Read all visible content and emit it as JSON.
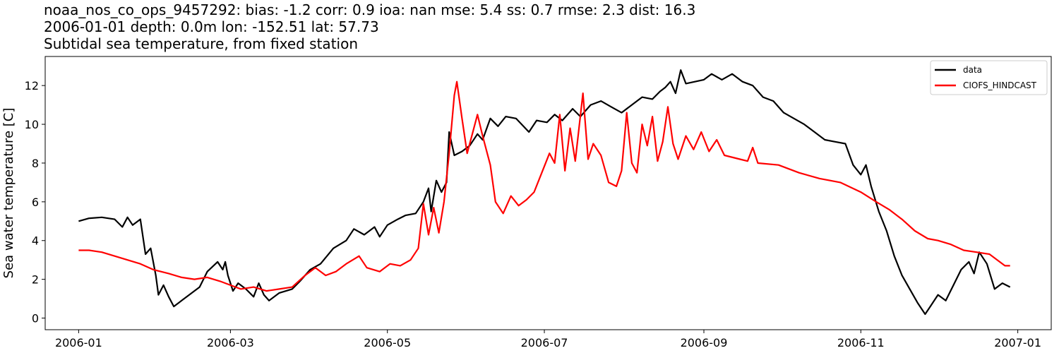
{
  "chart_data": {
    "type": "line",
    "title_lines": [
      "noaa_nos_co_ops_9457292: bias: -1.2  corr: 0.9  ioa: nan  mse: 5.4  ss: 0.7  rmse: 2.3  dist: 16.3",
      "2006-01-01 depth: 0.0m lon: -152.51 lat: 57.73",
      "Subtidal sea temperature, from fixed station"
    ],
    "xlabel": "",
    "ylabel": "Sea water temperature [C]",
    "xlim": [
      "2005-12-19",
      "2007-01-14"
    ],
    "ylim": [
      -0.6,
      13.5
    ],
    "x_ticks": [
      "2006-01",
      "2006-03",
      "2006-05",
      "2006-07",
      "2006-09",
      "2006-11",
      "2007-01"
    ],
    "y_ticks": [
      0,
      2,
      4,
      6,
      8,
      10,
      12
    ],
    "grid": false,
    "legend_position": "top-right",
    "series": [
      {
        "name": "data",
        "color": "#000000",
        "points": [
          [
            "2006-01-01",
            5.0
          ],
          [
            "2006-01-05",
            5.15
          ],
          [
            "2006-01-10",
            5.2
          ],
          [
            "2006-01-15",
            5.1
          ],
          [
            "2006-01-18",
            4.7
          ],
          [
            "2006-01-20",
            5.2
          ],
          [
            "2006-01-22",
            4.8
          ],
          [
            "2006-01-25",
            5.1
          ],
          [
            "2006-01-27",
            3.3
          ],
          [
            "2006-01-29",
            3.6
          ],
          [
            "2006-01-31",
            2.2
          ],
          [
            "2006-02-01",
            1.2
          ],
          [
            "2006-02-03",
            1.7
          ],
          [
            "2006-02-05",
            1.1
          ],
          [
            "2006-02-07",
            0.6
          ],
          [
            "2006-02-10",
            0.9
          ],
          [
            "2006-02-14",
            1.3
          ],
          [
            "2006-02-17",
            1.6
          ],
          [
            "2006-02-20",
            2.4
          ],
          [
            "2006-02-24",
            2.9
          ],
          [
            "2006-02-26",
            2.5
          ],
          [
            "2006-02-27",
            2.9
          ],
          [
            "2006-02-28",
            2.2
          ],
          [
            "2006-03-02",
            1.4
          ],
          [
            "2006-03-04",
            1.8
          ],
          [
            "2006-03-07",
            1.5
          ],
          [
            "2006-03-10",
            1.1
          ],
          [
            "2006-03-12",
            1.8
          ],
          [
            "2006-03-14",
            1.2
          ],
          [
            "2006-03-16",
            0.9
          ],
          [
            "2006-03-20",
            1.3
          ],
          [
            "2006-03-25",
            1.5
          ],
          [
            "2006-03-28",
            1.9
          ],
          [
            "2006-04-01",
            2.5
          ],
          [
            "2006-04-05",
            2.8
          ],
          [
            "2006-04-10",
            3.6
          ],
          [
            "2006-04-15",
            4.0
          ],
          [
            "2006-04-18",
            4.6
          ],
          [
            "2006-04-22",
            4.3
          ],
          [
            "2006-04-26",
            4.7
          ],
          [
            "2006-04-28",
            4.2
          ],
          [
            "2006-05-01",
            4.8
          ],
          [
            "2006-05-05",
            5.1
          ],
          [
            "2006-05-08",
            5.3
          ],
          [
            "2006-05-12",
            5.4
          ],
          [
            "2006-05-15",
            6.0
          ],
          [
            "2006-05-17",
            6.7
          ],
          [
            "2006-05-18",
            5.5
          ],
          [
            "2006-05-20",
            7.1
          ],
          [
            "2006-05-22",
            6.5
          ],
          [
            "2006-05-24",
            7.0
          ],
          [
            "2006-05-25",
            9.6
          ],
          [
            "2006-05-27",
            8.4
          ],
          [
            "2006-05-30",
            8.6
          ],
          [
            "2006-06-02",
            8.9
          ],
          [
            "2006-06-05",
            9.5
          ],
          [
            "2006-06-07",
            9.2
          ],
          [
            "2006-06-10",
            10.3
          ],
          [
            "2006-06-13",
            9.9
          ],
          [
            "2006-06-16",
            10.4
          ],
          [
            "2006-06-20",
            10.3
          ],
          [
            "2006-06-25",
            9.6
          ],
          [
            "2006-06-28",
            10.2
          ],
          [
            "2006-07-02",
            10.1
          ],
          [
            "2006-07-05",
            10.5
          ],
          [
            "2006-07-08",
            10.2
          ],
          [
            "2006-07-12",
            10.8
          ],
          [
            "2006-07-15",
            10.4
          ],
          [
            "2006-07-19",
            11.0
          ],
          [
            "2006-07-23",
            11.2
          ],
          [
            "2006-07-27",
            10.9
          ],
          [
            "2006-07-31",
            10.6
          ],
          [
            "2006-08-04",
            11.0
          ],
          [
            "2006-08-08",
            11.4
          ],
          [
            "2006-08-12",
            11.3
          ],
          [
            "2006-08-15",
            11.7
          ],
          [
            "2006-08-17",
            11.9
          ],
          [
            "2006-08-19",
            12.2
          ],
          [
            "2006-08-21",
            11.6
          ],
          [
            "2006-08-23",
            12.8
          ],
          [
            "2006-08-25",
            12.1
          ],
          [
            "2006-09-01",
            12.3
          ],
          [
            "2006-09-04",
            12.6
          ],
          [
            "2006-09-08",
            12.3
          ],
          [
            "2006-09-12",
            12.6
          ],
          [
            "2006-09-16",
            12.2
          ],
          [
            "2006-09-20",
            12.0
          ],
          [
            "2006-09-24",
            11.4
          ],
          [
            "2006-09-28",
            11.2
          ],
          [
            "2006-10-02",
            10.6
          ],
          [
            "2006-10-06",
            10.3
          ],
          [
            "2006-10-10",
            10.0
          ],
          [
            "2006-10-14",
            9.6
          ],
          [
            "2006-10-18",
            9.2
          ],
          [
            "2006-10-22",
            9.1
          ],
          [
            "2006-10-26",
            9.0
          ],
          [
            "2006-10-29",
            7.9
          ],
          [
            "2006-11-01",
            7.4
          ],
          [
            "2006-11-03",
            7.9
          ],
          [
            "2006-11-05",
            6.8
          ],
          [
            "2006-11-08",
            5.5
          ],
          [
            "2006-11-11",
            4.5
          ],
          [
            "2006-11-14",
            3.2
          ],
          [
            "2006-11-17",
            2.2
          ],
          [
            "2006-11-20",
            1.5
          ],
          [
            "2006-11-23",
            0.8
          ],
          [
            "2006-11-26",
            0.2
          ],
          [
            "2006-11-28",
            0.6
          ],
          [
            "2006-12-01",
            1.2
          ],
          [
            "2006-12-04",
            0.9
          ],
          [
            "2006-12-07",
            1.7
          ],
          [
            "2006-12-10",
            2.5
          ],
          [
            "2006-12-13",
            2.9
          ],
          [
            "2006-12-15",
            2.3
          ],
          [
            "2006-12-17",
            3.4
          ],
          [
            "2006-12-20",
            2.8
          ],
          [
            "2006-12-23",
            1.5
          ],
          [
            "2006-12-26",
            1.8
          ],
          [
            "2006-12-29",
            1.6
          ]
        ]
      },
      {
        "name": "CIOFS_HINDCAST",
        "color": "#ff0000",
        "points": [
          [
            "2006-01-01",
            3.5
          ],
          [
            "2006-01-05",
            3.5
          ],
          [
            "2006-01-10",
            3.4
          ],
          [
            "2006-01-15",
            3.2
          ],
          [
            "2006-01-20",
            3.0
          ],
          [
            "2006-01-25",
            2.8
          ],
          [
            "2006-01-30",
            2.5
          ],
          [
            "2006-02-05",
            2.3
          ],
          [
            "2006-02-10",
            2.1
          ],
          [
            "2006-02-15",
            2.0
          ],
          [
            "2006-02-20",
            2.1
          ],
          [
            "2006-02-25",
            1.9
          ],
          [
            "2006-03-01",
            1.7
          ],
          [
            "2006-03-05",
            1.5
          ],
          [
            "2006-03-10",
            1.6
          ],
          [
            "2006-03-15",
            1.4
          ],
          [
            "2006-03-20",
            1.5
          ],
          [
            "2006-03-25",
            1.6
          ],
          [
            "2006-03-30",
            2.2
          ],
          [
            "2006-04-03",
            2.6
          ],
          [
            "2006-04-07",
            2.2
          ],
          [
            "2006-04-11",
            2.4
          ],
          [
            "2006-04-15",
            2.8
          ],
          [
            "2006-04-20",
            3.2
          ],
          [
            "2006-04-23",
            2.6
          ],
          [
            "2006-04-28",
            2.4
          ],
          [
            "2006-05-02",
            2.8
          ],
          [
            "2006-05-06",
            2.7
          ],
          [
            "2006-05-10",
            3.0
          ],
          [
            "2006-05-13",
            3.6
          ],
          [
            "2006-05-15",
            5.9
          ],
          [
            "2006-05-17",
            4.3
          ],
          [
            "2006-05-19",
            5.7
          ],
          [
            "2006-05-21",
            4.4
          ],
          [
            "2006-05-23",
            6.0
          ],
          [
            "2006-05-25",
            8.5
          ],
          [
            "2006-05-27",
            11.5
          ],
          [
            "2006-05-28",
            12.2
          ],
          [
            "2006-05-30",
            10.3
          ],
          [
            "2006-06-01",
            8.5
          ],
          [
            "2006-06-03",
            9.5
          ],
          [
            "2006-06-05",
            10.5
          ],
          [
            "2006-06-07",
            9.4
          ],
          [
            "2006-06-10",
            7.9
          ],
          [
            "2006-06-12",
            6.0
          ],
          [
            "2006-06-15",
            5.4
          ],
          [
            "2006-06-18",
            6.3
          ],
          [
            "2006-06-21",
            5.8
          ],
          [
            "2006-06-24",
            6.1
          ],
          [
            "2006-06-27",
            6.5
          ],
          [
            "2006-06-30",
            7.5
          ],
          [
            "2006-07-03",
            8.5
          ],
          [
            "2006-07-05",
            8.0
          ],
          [
            "2006-07-07",
            10.5
          ],
          [
            "2006-07-09",
            7.6
          ],
          [
            "2006-07-11",
            9.8
          ],
          [
            "2006-07-13",
            8.1
          ],
          [
            "2006-07-16",
            11.6
          ],
          [
            "2006-07-18",
            8.2
          ],
          [
            "2006-07-20",
            9.0
          ],
          [
            "2006-07-23",
            8.4
          ],
          [
            "2006-07-26",
            7.0
          ],
          [
            "2006-07-29",
            6.8
          ],
          [
            "2006-07-31",
            7.6
          ],
          [
            "2006-08-02",
            10.6
          ],
          [
            "2006-08-04",
            8.0
          ],
          [
            "2006-08-06",
            7.5
          ],
          [
            "2006-08-08",
            10.0
          ],
          [
            "2006-08-10",
            8.9
          ],
          [
            "2006-08-12",
            10.4
          ],
          [
            "2006-08-14",
            8.1
          ],
          [
            "2006-08-16",
            9.1
          ],
          [
            "2006-08-18",
            10.9
          ],
          [
            "2006-08-20",
            9.0
          ],
          [
            "2006-08-22",
            8.2
          ],
          [
            "2006-08-25",
            9.4
          ],
          [
            "2006-08-28",
            8.7
          ],
          [
            "2006-08-31",
            9.6
          ],
          [
            "2006-09-03",
            8.6
          ],
          [
            "2006-09-06",
            9.2
          ],
          [
            "2006-09-09",
            8.4
          ],
          [
            "2006-09-15",
            8.2
          ],
          [
            "2006-09-18",
            8.1
          ],
          [
            "2006-09-20",
            8.8
          ],
          [
            "2006-09-22",
            8.0
          ],
          [
            "2006-09-30",
            7.9
          ],
          [
            "2006-10-08",
            7.5
          ],
          [
            "2006-10-16",
            7.2
          ],
          [
            "2006-10-24",
            7.0
          ],
          [
            "2006-11-01",
            6.5
          ],
          [
            "2006-11-07",
            6.0
          ],
          [
            "2006-11-12",
            5.6
          ],
          [
            "2006-11-17",
            5.1
          ],
          [
            "2006-11-22",
            4.5
          ],
          [
            "2006-11-27",
            4.1
          ],
          [
            "2006-12-01",
            4.0
          ],
          [
            "2006-12-06",
            3.8
          ],
          [
            "2006-12-11",
            3.5
          ],
          [
            "2006-12-16",
            3.4
          ],
          [
            "2006-12-21",
            3.3
          ],
          [
            "2006-12-24",
            3.0
          ],
          [
            "2006-12-27",
            2.7
          ],
          [
            "2006-12-29",
            2.7
          ]
        ]
      }
    ]
  }
}
